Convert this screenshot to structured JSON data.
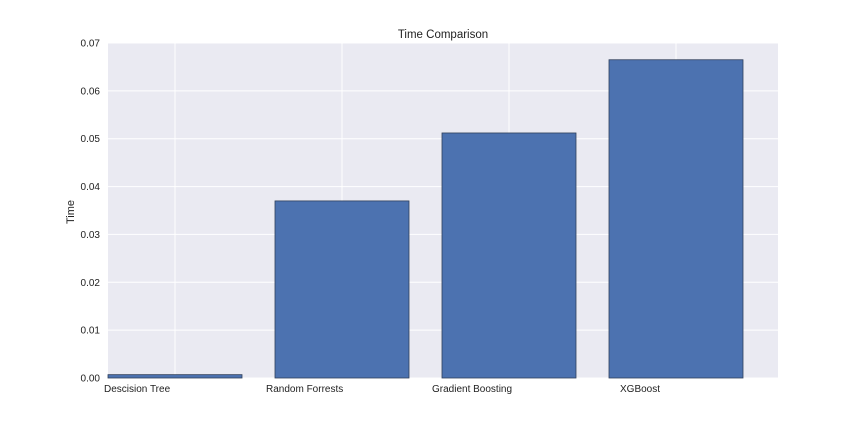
{
  "chart_data": {
    "type": "bar",
    "title": "Time Comparison",
    "xlabel": "",
    "ylabel": "Time",
    "categories": [
      "Descision Tree",
      "Random Forrests",
      "Gradient Boosting",
      "XGBoost"
    ],
    "values": [
      0.0007,
      0.037,
      0.0512,
      0.0665
    ],
    "ylim": [
      0,
      0.07
    ],
    "yticks": [
      "0.00",
      "0.01",
      "0.02",
      "0.03",
      "0.04",
      "0.05",
      "0.06",
      "0.07"
    ],
    "grid": true,
    "colors": {
      "bar": "#4c72b0",
      "bar_edge": "#2f3f5a",
      "plot_background": "#eaeaf2",
      "grid": "#ffffff"
    }
  }
}
